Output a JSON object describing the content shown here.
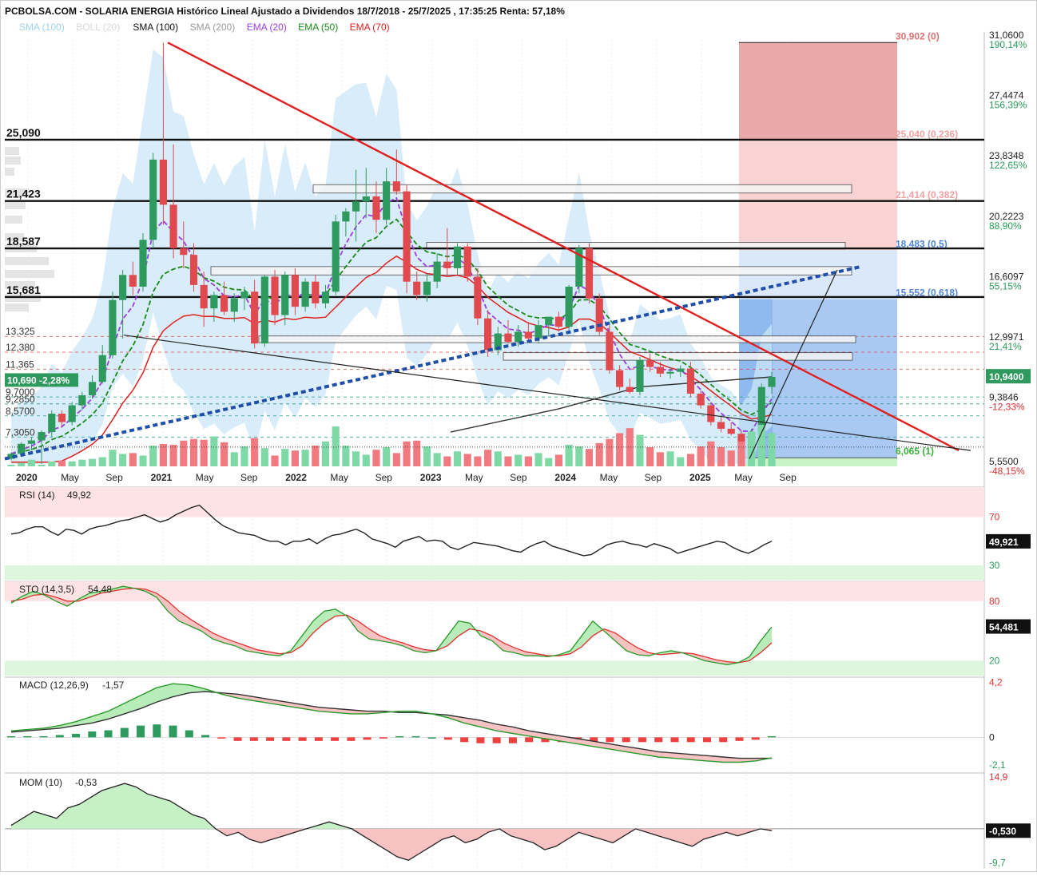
{
  "header": {
    "title": "PCBOLSA.COM - SOLARIA ENERGIA Histórico Lineal Ajustado a Dividendos 18/7/2018 - 25/7/2025 , 17:35:25 Renta: 57,18%"
  },
  "indicators_legend": [
    {
      "text": "SMA (100)",
      "color": "#9dd1ef"
    },
    {
      "text": "BOLL (20)",
      "color": "#d8d8d8"
    },
    {
      "text": "SMA (100)",
      "color": "#111111"
    },
    {
      "text": "SMA (200)",
      "color": "#9a9a9a"
    },
    {
      "text": "EMA (20)",
      "color": "#9b3fe0"
    },
    {
      "text": "EMA (50)",
      "color": "#1a8a1a"
    },
    {
      "text": "EMA (70)",
      "color": "#e02020"
    }
  ],
  "price_axis": {
    "labels": [
      {
        "value": "31,0600",
        "pct": "190,14%",
        "price": 31.06
      },
      {
        "value": "27,4474",
        "pct": "156,39%",
        "price": 27.4474
      },
      {
        "value": "23,8348",
        "pct": "122,65%",
        "price": 23.8348
      },
      {
        "value": "20,2223",
        "pct": "88,90%",
        "price": 20.2223
      },
      {
        "value": "16,6097",
        "pct": "55,15%",
        "price": 16.6097
      },
      {
        "value": "12,9971",
        "pct": "21,41%",
        "price": 12.9971
      },
      {
        "value": "9,3846",
        "pct": "-12,33%",
        "price": 9.3846
      },
      {
        "value": "5,5500",
        "pct": "-48,15%",
        "price": 5.55
      }
    ],
    "last_price": "10,9400",
    "last_price_value": 10.94
  },
  "horizontal_levels": [
    {
      "label": "25,090",
      "price": 25.09
    },
    {
      "label": "21,423",
      "price": 21.423
    },
    {
      "label": "18,587",
      "price": 18.587
    },
    {
      "label": "15,681",
      "price": 15.681
    }
  ],
  "left_labels": [
    {
      "label": "13,325",
      "price": 13.325
    },
    {
      "label": "12,380",
      "price": 12.38
    },
    {
      "label": "11,365",
      "price": 11.365
    },
    {
      "label": "9,7000",
      "price": 9.7
    },
    {
      "label": "9,2850",
      "price": 9.285
    },
    {
      "label": "8,5700",
      "price": 8.57
    },
    {
      "label": "7,3050",
      "price": 7.305
    }
  ],
  "current_badge": {
    "text": "10,690 -2,28%",
    "price": 10.69
  },
  "fib_levels": [
    {
      "label": "30,902 (0)",
      "price": 30.902,
      "color": "#e07070"
    },
    {
      "label": "25,040 (0,236)",
      "price": 25.04,
      "color": "#f0a0a0"
    },
    {
      "label": "21,414 (0,382)",
      "price": 21.414,
      "color": "#f0a0a0"
    },
    {
      "label": "18,483 (0,5)",
      "price": 18.483,
      "color": "#4f86d8"
    },
    {
      "label": "15,552 (0,618)",
      "price": 15.552,
      "color": "#4f86d8"
    },
    {
      "label": "6,065 (1)",
      "price": 6.065,
      "color": "#39b039"
    }
  ],
  "time_axis": [
    "2020",
    "May",
    "Sep",
    "2021",
    "May",
    "Sep",
    "2022",
    "May",
    "Sep",
    "2023",
    "May",
    "Sep",
    "2024",
    "May",
    "Sep",
    "2025",
    "May",
    "Sep"
  ],
  "time_axis_bold": [
    "2020",
    "2021",
    "2022",
    "2023",
    "2024",
    "2025"
  ],
  "chart_data": {
    "type": "candlestick",
    "title": "SOLARIA ENERGIA Histórico Lineal Ajustado a Dividendos 18/7/2018 - 25/7/2025",
    "period": "weekly-interval candles (approx.), Jan 2020 – Jul 2025",
    "y_range": [
      5.55,
      31.06
    ],
    "candles": [
      {
        "o": 6.0,
        "h": 6.4,
        "l": 5.9,
        "c": 6.3
      },
      {
        "o": 6.3,
        "h": 7.0,
        "l": 6.2,
        "c": 6.9
      },
      {
        "o": 6.9,
        "h": 7.3,
        "l": 6.5,
        "c": 7.1
      },
      {
        "o": 7.1,
        "h": 7.7,
        "l": 5.7,
        "c": 7.6
      },
      {
        "o": 7.6,
        "h": 8.9,
        "l": 7.3,
        "c": 8.7
      },
      {
        "o": 8.7,
        "h": 8.9,
        "l": 7.9,
        "c": 8.2
      },
      {
        "o": 8.2,
        "h": 9.4,
        "l": 8.0,
        "c": 9.2
      },
      {
        "o": 9.2,
        "h": 10.0,
        "l": 8.9,
        "c": 9.8
      },
      {
        "o": 9.8,
        "h": 11.0,
        "l": 9.6,
        "c": 10.6
      },
      {
        "o": 10.6,
        "h": 12.8,
        "l": 10.5,
        "c": 12.2
      },
      {
        "o": 12.2,
        "h": 16.0,
        "l": 12.0,
        "c": 15.5
      },
      {
        "o": 15.5,
        "h": 17.3,
        "l": 13.2,
        "c": 17.0
      },
      {
        "o": 17.0,
        "h": 17.8,
        "l": 15.8,
        "c": 16.3
      },
      {
        "o": 16.3,
        "h": 19.5,
        "l": 16.0,
        "c": 19.1
      },
      {
        "o": 19.1,
        "h": 24.3,
        "l": 18.6,
        "c": 23.9
      },
      {
        "o": 23.9,
        "h": 30.9,
        "l": 20.0,
        "c": 21.2
      },
      {
        "o": 21.2,
        "h": 24.8,
        "l": 18.0,
        "c": 18.6
      },
      {
        "o": 18.6,
        "h": 20.2,
        "l": 17.4,
        "c": 18.2
      },
      {
        "o": 18.2,
        "h": 18.9,
        "l": 16.0,
        "c": 16.4
      },
      {
        "o": 16.4,
        "h": 17.2,
        "l": 13.9,
        "c": 15.0
      },
      {
        "o": 15.0,
        "h": 16.0,
        "l": 14.2,
        "c": 15.8
      },
      {
        "o": 15.8,
        "h": 16.6,
        "l": 14.6,
        "c": 14.8
      },
      {
        "o": 14.8,
        "h": 15.9,
        "l": 14.2,
        "c": 15.6
      },
      {
        "o": 15.6,
        "h": 16.3,
        "l": 14.9,
        "c": 16.0
      },
      {
        "o": 16.0,
        "h": 16.7,
        "l": 12.6,
        "c": 12.9
      },
      {
        "o": 12.9,
        "h": 17.0,
        "l": 12.7,
        "c": 16.9
      },
      {
        "o": 16.9,
        "h": 17.3,
        "l": 14.0,
        "c": 14.6
      },
      {
        "o": 14.6,
        "h": 17.2,
        "l": 14.0,
        "c": 17.0
      },
      {
        "o": 17.0,
        "h": 17.4,
        "l": 14.6,
        "c": 15.1
      },
      {
        "o": 15.1,
        "h": 16.8,
        "l": 14.8,
        "c": 16.6
      },
      {
        "o": 16.6,
        "h": 17.0,
        "l": 15.0,
        "c": 15.3
      },
      {
        "o": 15.3,
        "h": 16.4,
        "l": 15.0,
        "c": 16.0
      },
      {
        "o": 16.0,
        "h": 20.6,
        "l": 15.8,
        "c": 20.2
      },
      {
        "o": 20.2,
        "h": 21.0,
        "l": 19.3,
        "c": 20.8
      },
      {
        "o": 20.8,
        "h": 23.3,
        "l": 19.0,
        "c": 21.4
      },
      {
        "o": 21.4,
        "h": 23.4,
        "l": 20.4,
        "c": 21.7
      },
      {
        "o": 21.7,
        "h": 22.6,
        "l": 19.5,
        "c": 20.3
      },
      {
        "o": 20.3,
        "h": 23.4,
        "l": 20.0,
        "c": 22.6
      },
      {
        "o": 22.6,
        "h": 24.5,
        "l": 21.8,
        "c": 22.0
      },
      {
        "o": 22.0,
        "h": 22.4,
        "l": 15.9,
        "c": 16.6
      },
      {
        "o": 16.6,
        "h": 17.2,
        "l": 15.5,
        "c": 15.8
      },
      {
        "o": 15.8,
        "h": 17.1,
        "l": 15.4,
        "c": 16.6
      },
      {
        "o": 16.6,
        "h": 18.3,
        "l": 16.2,
        "c": 17.8
      },
      {
        "o": 17.8,
        "h": 19.8,
        "l": 16.9,
        "c": 17.4
      },
      {
        "o": 17.4,
        "h": 18.9,
        "l": 17.0,
        "c": 18.7
      },
      {
        "o": 18.7,
        "h": 18.9,
        "l": 16.6,
        "c": 16.9
      },
      {
        "o": 16.9,
        "h": 17.4,
        "l": 14.0,
        "c": 14.4
      },
      {
        "o": 14.4,
        "h": 14.9,
        "l": 12.1,
        "c": 12.5
      },
      {
        "o": 12.5,
        "h": 13.9,
        "l": 12.2,
        "c": 13.5
      },
      {
        "o": 13.5,
        "h": 14.3,
        "l": 12.9,
        "c": 13.0
      },
      {
        "o": 13.0,
        "h": 14.0,
        "l": 12.7,
        "c": 13.6
      },
      {
        "o": 13.6,
        "h": 14.2,
        "l": 13.0,
        "c": 13.2
      },
      {
        "o": 13.2,
        "h": 14.3,
        "l": 12.9,
        "c": 14.0
      },
      {
        "o": 14.0,
        "h": 14.5,
        "l": 13.3,
        "c": 14.5
      },
      {
        "o": 14.5,
        "h": 14.8,
        "l": 13.6,
        "c": 13.9
      },
      {
        "o": 13.9,
        "h": 16.4,
        "l": 13.7,
        "c": 16.3
      },
      {
        "o": 16.3,
        "h": 18.8,
        "l": 15.9,
        "c": 18.6
      },
      {
        "o": 18.6,
        "h": 18.9,
        "l": 15.3,
        "c": 15.6
      },
      {
        "o": 15.6,
        "h": 15.9,
        "l": 13.4,
        "c": 13.6
      },
      {
        "o": 13.6,
        "h": 14.0,
        "l": 11.1,
        "c": 11.3
      },
      {
        "o": 11.3,
        "h": 11.6,
        "l": 10.1,
        "c": 10.3
      },
      {
        "o": 10.3,
        "h": 10.8,
        "l": 9.9,
        "c": 10.0
      },
      {
        "o": 10.0,
        "h": 12.1,
        "l": 9.8,
        "c": 11.9
      },
      {
        "o": 11.9,
        "h": 12.3,
        "l": 11.2,
        "c": 11.5
      },
      {
        "o": 11.5,
        "h": 11.8,
        "l": 10.9,
        "c": 11.1
      },
      {
        "o": 11.1,
        "h": 11.5,
        "l": 10.8,
        "c": 11.2
      },
      {
        "o": 11.2,
        "h": 11.6,
        "l": 10.9,
        "c": 11.4
      },
      {
        "o": 11.4,
        "h": 11.8,
        "l": 9.7,
        "c": 9.9
      },
      {
        "o": 9.9,
        "h": 10.1,
        "l": 9.0,
        "c": 9.2
      },
      {
        "o": 9.2,
        "h": 9.4,
        "l": 8.0,
        "c": 8.2
      },
      {
        "o": 8.2,
        "h": 8.5,
        "l": 7.6,
        "c": 7.8
      },
      {
        "o": 7.8,
        "h": 8.2,
        "l": 7.4,
        "c": 7.5
      },
      {
        "o": 7.5,
        "h": 7.7,
        "l": 6.6,
        "c": 6.8
      },
      {
        "o": 6.8,
        "h": 7.8,
        "l": 6.1,
        "c": 7.6
      },
      {
        "o": 7.6,
        "h": 10.5,
        "l": 7.4,
        "c": 10.3
      },
      {
        "o": 10.3,
        "h": 11.2,
        "l": 9.9,
        "c": 10.9
      }
    ],
    "volume": [
      2,
      4,
      8,
      2,
      6,
      7,
      6,
      8,
      9,
      11,
      20,
      15,
      16,
      13,
      25,
      27,
      26,
      31,
      33,
      32,
      36,
      29,
      17,
      24,
      34,
      22,
      13,
      21,
      19,
      20,
      25,
      30,
      48,
      25,
      18,
      14,
      20,
      23,
      16,
      30,
      31,
      24,
      16,
      12,
      18,
      15,
      12,
      20,
      18,
      12,
      14,
      12,
      16,
      10,
      14,
      26,
      24,
      21,
      28,
      33,
      40,
      46,
      38,
      23,
      17,
      18,
      11,
      15,
      24,
      30,
      23,
      19,
      30,
      42,
      50,
      40
    ],
    "rsi": {
      "label": "RSI (14)",
      "value": "49,92",
      "value_display": "49,921",
      "levels": [
        70,
        30
      ],
      "values": [
        56,
        57,
        60,
        62,
        62,
        58,
        55,
        60,
        59,
        56,
        60,
        62,
        63,
        65,
        67,
        68,
        70,
        72,
        69,
        66,
        68,
        72,
        75,
        78,
        80,
        74,
        68,
        63,
        60,
        57,
        56,
        55,
        52,
        50,
        50,
        47,
        50,
        50,
        52,
        48,
        52,
        55,
        56,
        58,
        60,
        57,
        52,
        50,
        48,
        45,
        50,
        52,
        54,
        50,
        51,
        50,
        45,
        43,
        46,
        49,
        48,
        47,
        46,
        44,
        42,
        41,
        45,
        48,
        50,
        46,
        44,
        42,
        40,
        38,
        39,
        43,
        47,
        49,
        50,
        48,
        47,
        45,
        48,
        46,
        44,
        40,
        42,
        44,
        46,
        48,
        50,
        49,
        45,
        42,
        40,
        43,
        47,
        50
      ]
    },
    "stoch": {
      "label": "STO (14,3,5)",
      "value": "54,48",
      "value_display": "54,481",
      "levels": [
        80,
        20
      ],
      "k": [
        78,
        85,
        90,
        86,
        80,
        75,
        82,
        88,
        90,
        92,
        95,
        93,
        90,
        84,
        70,
        60,
        55,
        50,
        42,
        38,
        35,
        30,
        28,
        26,
        25,
        30,
        45,
        60,
        70,
        72,
        65,
        50,
        42,
        40,
        38,
        35,
        30,
        28,
        30,
        45,
        60,
        58,
        45,
        40,
        30,
        28,
        25,
        25,
        24,
        26,
        30,
        45,
        60,
        50,
        40,
        30,
        26,
        25,
        28,
        30,
        28,
        24,
        20,
        18,
        16,
        18,
        24,
        40,
        54
      ],
      "d": [
        80,
        82,
        86,
        87,
        84,
        80,
        80,
        84,
        88,
        90,
        92,
        93,
        92,
        88,
        80,
        70,
        62,
        55,
        48,
        43,
        39,
        35,
        31,
        29,
        27,
        28,
        35,
        48,
        58,
        65,
        66,
        60,
        52,
        45,
        41,
        38,
        34,
        31,
        30,
        35,
        45,
        52,
        50,
        45,
        38,
        33,
        29,
        27,
        25,
        25,
        27,
        34,
        45,
        52,
        48,
        40,
        33,
        28,
        26,
        27,
        28,
        27,
        24,
        21,
        19,
        18,
        20,
        28,
        38
      ]
    },
    "macd": {
      "label": "MACD (12,26,9)",
      "value": "-1,57",
      "axis": [
        "4,2",
        "0",
        "-2,1"
      ],
      "range": [
        -2.1,
        4.2
      ],
      "macd": [
        0.5,
        0.6,
        0.7,
        0.9,
        1.2,
        1.6,
        2.0,
        2.6,
        3.2,
        3.8,
        4.1,
        4.0,
        3.7,
        3.3,
        3.0,
        2.8,
        2.6,
        2.4,
        2.2,
        2.0,
        1.9,
        1.8,
        1.8,
        1.9,
        2.0,
        2.0,
        1.8,
        1.5,
        1.1,
        0.8,
        0.5,
        0.3,
        0.1,
        -0.1,
        -0.3,
        -0.5,
        -0.7,
        -0.9,
        -1.1,
        -1.3,
        -1.5,
        -1.6,
        -1.7,
        -1.8,
        -1.9,
        -1.9,
        -1.8,
        -1.57
      ],
      "signal": [
        0.4,
        0.5,
        0.6,
        0.7,
        0.9,
        1.1,
        1.4,
        1.8,
        2.2,
        2.7,
        3.1,
        3.4,
        3.5,
        3.4,
        3.3,
        3.1,
        2.9,
        2.7,
        2.5,
        2.3,
        2.2,
        2.1,
        2.0,
        2.0,
        1.9,
        1.9,
        1.8,
        1.7,
        1.5,
        1.3,
        1.0,
        0.8,
        0.5,
        0.3,
        0.1,
        -0.1,
        -0.3,
        -0.5,
        -0.7,
        -0.9,
        -1.1,
        -1.2,
        -1.3,
        -1.4,
        -1.5,
        -1.6,
        -1.6,
        -1.6
      ],
      "histogram": [
        0.1,
        0.1,
        0.1,
        0.2,
        0.3,
        0.5,
        0.6,
        0.8,
        1.0,
        1.1,
        1.0,
        0.6,
        0.2,
        -0.1,
        -0.3,
        -0.3,
        -0.3,
        -0.3,
        -0.3,
        -0.3,
        -0.3,
        -0.3,
        -0.2,
        -0.1,
        0.1,
        0.1,
        0.0,
        -0.2,
        -0.4,
        -0.5,
        -0.5,
        -0.5,
        -0.4,
        -0.4,
        -0.4,
        -0.4,
        -0.4,
        -0.4,
        -0.4,
        -0.4,
        -0.4,
        -0.4,
        -0.4,
        -0.4,
        -0.4,
        -0.3,
        -0.2,
        0.1
      ]
    },
    "mom": {
      "label": "MOM (10)",
      "value": "-0,53",
      "value_display": "-0,530",
      "axis": [
        "14,9",
        "-9,7"
      ],
      "range": [
        -9.7,
        14.9
      ],
      "values": [
        1,
        3,
        5,
        4,
        3,
        6,
        7,
        9,
        11,
        12,
        13,
        12,
        10,
        9,
        8,
        6,
        4,
        3,
        0,
        -2,
        -1,
        -3,
        -4,
        -3,
        -2,
        -1,
        0,
        1,
        2,
        1,
        0,
        -2,
        -4,
        -6,
        -8,
        -9,
        -7,
        -5,
        -3,
        -2,
        -4,
        -3,
        -1,
        0,
        -2,
        -3,
        -4,
        -6,
        -5,
        -3,
        -1,
        -2,
        -3,
        -4,
        -2,
        0,
        -1,
        -2,
        -3,
        -4,
        -5,
        -3,
        -2,
        -1,
        -2,
        -1,
        0,
        -0.53
      ]
    }
  }
}
